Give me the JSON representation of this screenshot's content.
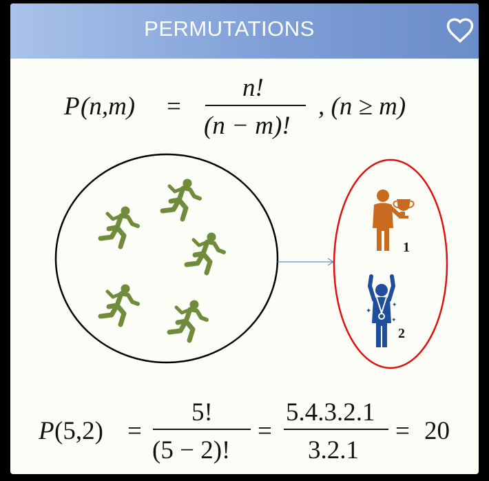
{
  "header": {
    "title": "PERMUTATIONS",
    "favorite_icon": "heart-outline-icon"
  },
  "formula_general": {
    "lhs_func": "P",
    "lhs_args": "(n,m)",
    "equals": "=",
    "numerator": "n!",
    "denominator": "(n − m)!",
    "condition": ", (n ≥ m)"
  },
  "diagram": {
    "group_icon": "running-person-icon",
    "group_count": 5,
    "group_color": "#6e8c3c",
    "winners": [
      {
        "icon": "person-trophy-icon",
        "label": "1",
        "color": "#c96b1f"
      },
      {
        "icon": "person-medal-icon",
        "label": "2",
        "color": "#1f4f9c"
      }
    ],
    "selection_color": "#e01010",
    "arrow_color": "#6a8cc9"
  },
  "formula_example": {
    "lhs_func": "P",
    "lhs_args": "(5,2)",
    "equals1": "=",
    "frac1_num": "5!",
    "frac1_den": "(5 − 2)!",
    "equals2": "=",
    "frac2_num": "5.4.3.2.1",
    "frac2_den": "3.2.1",
    "equals3": "=",
    "result": "20"
  }
}
